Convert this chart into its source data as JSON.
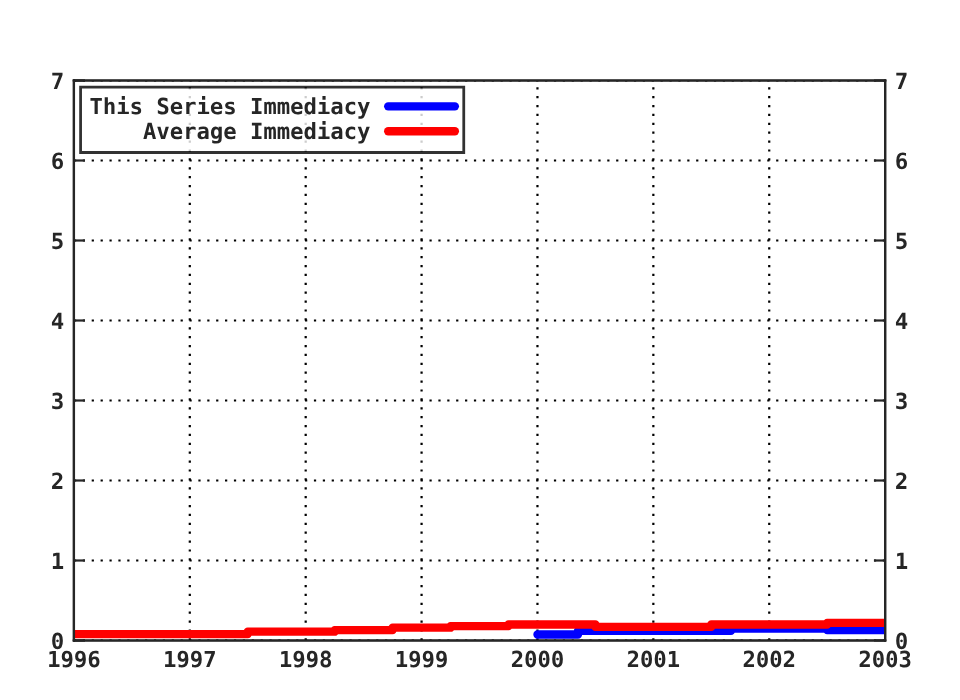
{
  "chart_data": {
    "type": "step",
    "xlim": [
      1996,
      2003
    ],
    "xticks": [
      1996,
      1997,
      1998,
      1999,
      2000,
      2001,
      2002,
      2003
    ],
    "ylim": [
      0,
      7
    ],
    "yticks": [
      0,
      1,
      2,
      3,
      4,
      5,
      6,
      7
    ],
    "y2lim": [
      0,
      7
    ],
    "y2ticks": [
      0,
      1,
      2,
      3,
      4,
      5,
      6,
      7
    ],
    "grid": true,
    "legend": "top left",
    "line_style": "solid",
    "series": [
      {
        "name": "This Series Immediacy",
        "color": "#0000ff",
        "x": [
          2000,
          2000.35,
          2001.67,
          2002.5,
          2003
        ],
        "values": [
          0.075,
          0.12,
          0.15,
          0.13,
          0.13
        ]
      },
      {
        "name": "Average Immediacy",
        "color": "#ff0000",
        "x": [
          1996,
          1997.5,
          1998.25,
          1998.75,
          1999.25,
          1999.75,
          2000.5,
          2001.5,
          2002.5,
          2003
        ],
        "values": [
          0.08,
          0.11,
          0.13,
          0.16,
          0.18,
          0.2,
          0.17,
          0.2,
          0.22,
          0.22
        ]
      }
    ]
  }
}
